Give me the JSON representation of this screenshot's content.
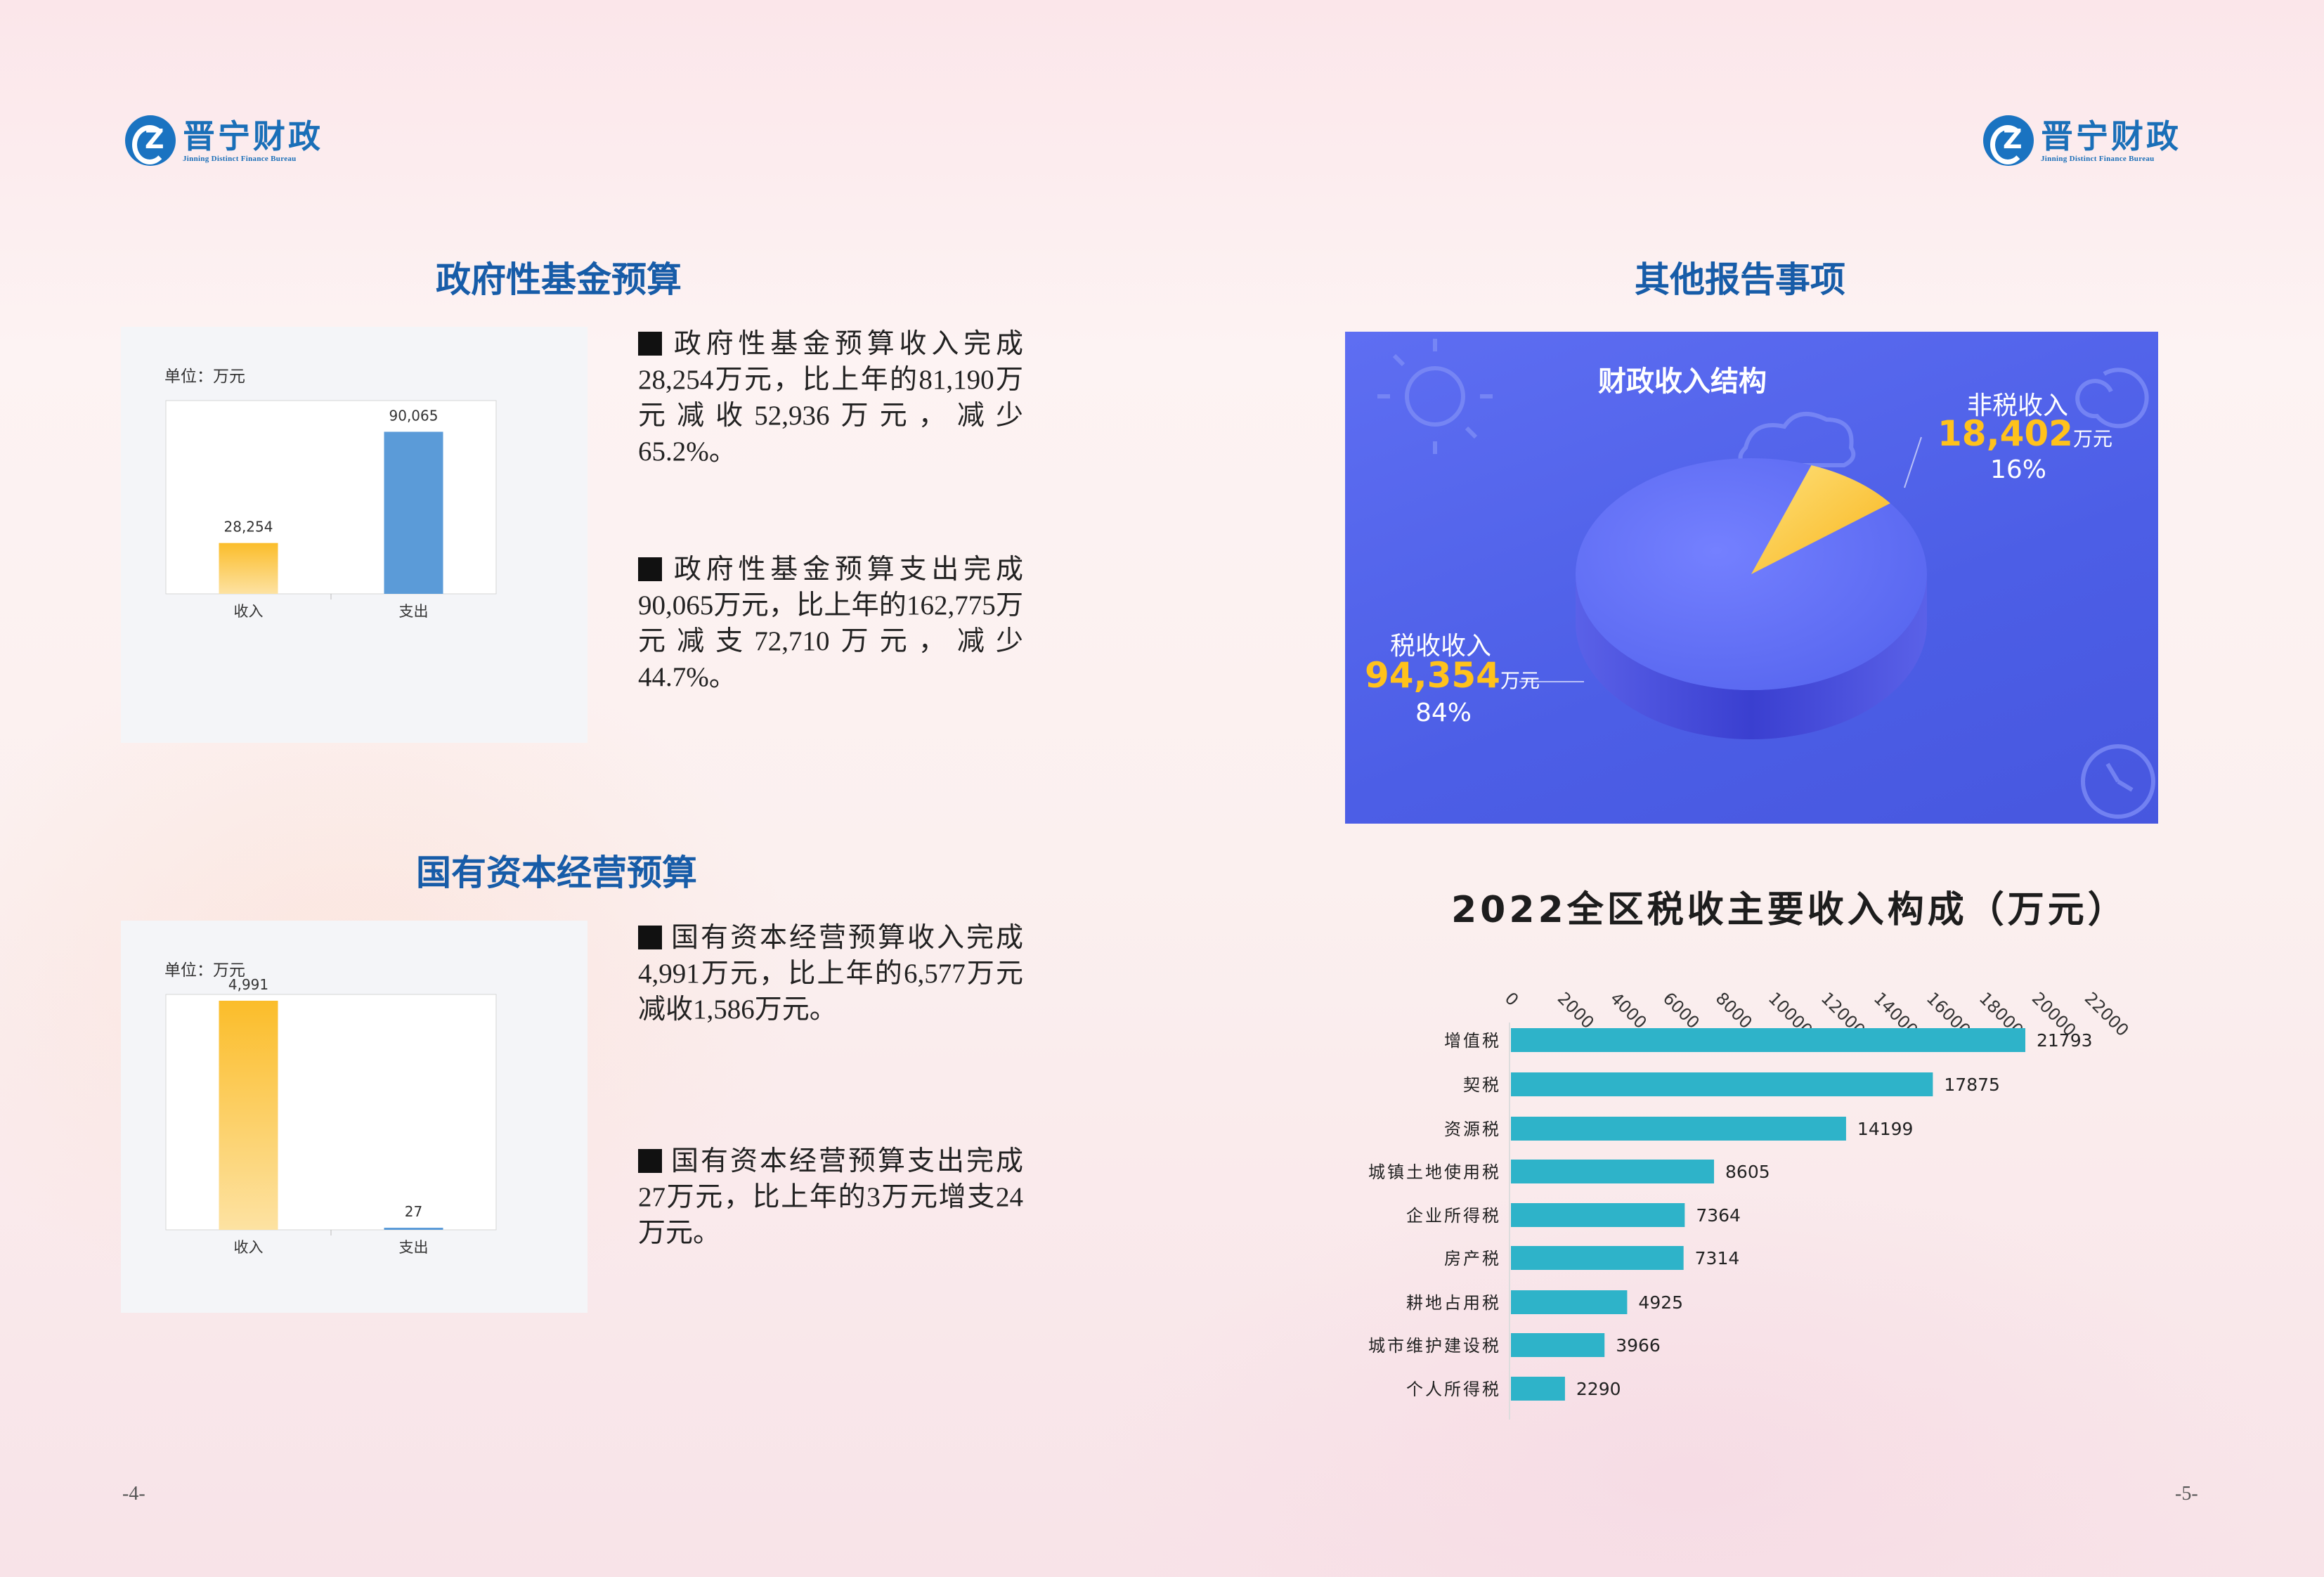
{
  "logo": {
    "cn": "晋宁财政",
    "en": "Jinning Distinct Finance Bureau"
  },
  "left": {
    "fund_title": "政府性基金预算",
    "fund_chart": {
      "unit": "单位：万元",
      "categories": [
        "收入",
        "支出"
      ],
      "values": [
        28254,
        90065
      ],
      "value_labels": [
        "28,254",
        "90,065"
      ]
    },
    "fund_p1": "政府性基金预算收入完成28,254万元，比上年的81,190万元减收52,936万元，减少65.2%。",
    "fund_p2": "政府性基金预算支出完成90,065万元，比上年的162,775万元减支72,710万元，减少44.7%。",
    "state_title": "国有资本经营预算",
    "state_chart": {
      "unit": "单位：万元",
      "categories": [
        "收入",
        "支出"
      ],
      "values": [
        4991,
        27
      ],
      "value_labels": [
        "4,991",
        "27"
      ]
    },
    "state_p1": "国有资本经营预算收入完成4,991万元，比上年的6,577万元减收1,586万元。",
    "state_p2": "国有资本经营预算支出完成27万元，比上年的3万元增支24万元。",
    "page_no": "-4-"
  },
  "right": {
    "title": "其他报告事项",
    "pie": {
      "title": "财政收入结构",
      "tax_label": "税收收入",
      "tax_value": "94,354",
      "tax_pct": "84%",
      "nontax_label": "非税收入",
      "nontax_value": "18,402",
      "nontax_pct": "16%",
      "unit": "万元"
    },
    "bar_title": "2022全区税收主要收入构成（万元）",
    "page_no": "-5-"
  },
  "chart_data": [
    {
      "type": "bar",
      "title": "",
      "ylabel": "单位：万元",
      "categories": [
        "收入",
        "支出"
      ],
      "values": [
        28254,
        90065
      ]
    },
    {
      "type": "bar",
      "title": "",
      "ylabel": "单位：万元",
      "categories": [
        "收入",
        "支出"
      ],
      "values": [
        4991,
        27
      ]
    },
    {
      "type": "pie",
      "title": "财政收入结构",
      "categories": [
        "税收收入",
        "非税收入"
      ],
      "values": [
        94354,
        18402
      ],
      "percent": [
        84,
        16
      ],
      "colors": [
        "#5b6df0",
        "#ffc21c"
      ]
    },
    {
      "type": "bar",
      "orientation": "horizontal",
      "title": "2022全区税收主要收入构成（万元）",
      "categories": [
        "增值税",
        "契税",
        "资源税",
        "城镇土地使用税",
        "企业所得税",
        "房产税",
        "耕地占用税",
        "城市维护建设税",
        "个人所得税"
      ],
      "values": [
        21793,
        17875,
        14199,
        8605,
        7364,
        7314,
        4925,
        3966,
        2290
      ],
      "ticks": [
        0,
        2000,
        4000,
        6000,
        8000,
        10000,
        12000,
        14000,
        16000,
        18000,
        20000,
        22000
      ],
      "xlim": [
        0,
        22000
      ],
      "color": "#2eb3c9"
    }
  ]
}
